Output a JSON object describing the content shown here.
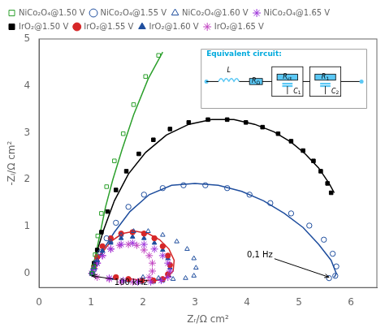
{
  "chart_data": {
    "type": "scatter",
    "xlabel": "Zᵣ/Ω cm²",
    "ylabel": "-Zᵢ/Ω cm²",
    "xlim": [
      0,
      6.5
    ],
    "ylim": [
      -0.3,
      5.0
    ],
    "xticks": [
      0,
      1,
      2,
      3,
      4,
      5,
      6
    ],
    "yticks": [
      0,
      1,
      2,
      3,
      4,
      5
    ],
    "grid": false,
    "legend": "upper left",
    "series": [
      {
        "type": "line",
        "color": "#2ca02c",
        "x": [
          1.0,
          1.05,
          1.1,
          1.18,
          1.28,
          1.42,
          1.6,
          1.82,
          2.1,
          2.38
        ],
        "values": [
          0.0,
          0.18,
          0.45,
          0.88,
          1.42,
          2.0,
          2.65,
          3.38,
          4.15,
          4.72
        ]
      },
      {
        "type": "line",
        "color": "#000000",
        "x": [
          1.0,
          1.1,
          1.25,
          1.45,
          1.72,
          2.05,
          2.45,
          2.88,
          3.32,
          3.75,
          4.15,
          4.52,
          4.85,
          5.12,
          5.38,
          5.58,
          5.68
        ],
        "values": [
          0.0,
          0.42,
          0.95,
          1.55,
          2.12,
          2.58,
          2.95,
          3.18,
          3.28,
          3.28,
          3.18,
          3.02,
          2.8,
          2.55,
          2.25,
          1.92,
          1.72
        ]
      },
      {
        "type": "line",
        "color": "#d62728",
        "x": [
          1.0,
          1.08,
          1.2,
          1.38,
          1.6,
          1.85,
          2.1,
          2.32,
          2.5,
          2.6,
          2.58,
          2.45,
          2.25,
          1.98,
          1.68
        ],
        "values": [
          0.0,
          0.18,
          0.42,
          0.68,
          0.85,
          0.9,
          0.85,
          0.72,
          0.52,
          0.28,
          0.05,
          -0.1,
          -0.15,
          -0.15,
          -0.1
        ]
      },
      {
        "type": "line",
        "color": "#1f4e9e",
        "x": [
          1.0,
          1.08,
          1.22,
          1.45,
          1.75,
          2.12,
          2.55,
          3.0,
          3.45,
          3.9,
          4.32,
          4.72,
          5.08,
          5.38,
          5.62,
          5.72,
          5.68
        ],
        "values": [
          0.0,
          0.18,
          0.48,
          0.88,
          1.32,
          1.68,
          1.88,
          1.92,
          1.88,
          1.75,
          1.55,
          1.28,
          0.98,
          0.62,
          0.28,
          0.0,
          -0.08
        ]
      },
      {
        "type": "scatter",
        "name": "NiCo₂O₄@1.50 V",
        "color": "#2ca02c",
        "marker": "square-open",
        "x": [
          1.02,
          1.05,
          1.08,
          1.13,
          1.2,
          1.3,
          1.45,
          1.62,
          1.82,
          2.05,
          2.3
        ],
        "values": [
          0.0,
          0.15,
          0.4,
          0.8,
          1.28,
          1.85,
          2.4,
          2.98,
          3.6,
          4.2,
          4.65
        ]
      },
      {
        "type": "scatter",
        "name": "NiCo₂O₄@1.55 V",
        "color": "#1f4e9e",
        "marker": "circle-open",
        "x": [
          1.02,
          1.05,
          1.1,
          1.18,
          1.3,
          1.48,
          1.72,
          2.02,
          2.38,
          2.78,
          3.2,
          3.62,
          4.05,
          4.45,
          4.85,
          5.2,
          5.48,
          5.65,
          5.72,
          5.7,
          5.58
        ],
        "values": [
          0.0,
          0.08,
          0.22,
          0.45,
          0.75,
          1.08,
          1.42,
          1.68,
          1.82,
          1.88,
          1.88,
          1.82,
          1.68,
          1.5,
          1.28,
          1.02,
          0.72,
          0.42,
          0.15,
          -0.05,
          -0.1
        ]
      },
      {
        "type": "scatter",
        "name": "NiCo₂O₄@1.60 V",
        "color": "#1f4e9e",
        "marker": "triangle-open",
        "x": [
          1.02,
          1.06,
          1.12,
          1.22,
          1.38,
          1.58,
          1.82,
          2.1,
          2.38,
          2.65,
          2.85,
          2.98,
          3.02,
          2.98,
          2.82,
          2.58,
          2.3,
          2.0
        ],
        "values": [
          0.0,
          0.12,
          0.28,
          0.48,
          0.68,
          0.82,
          0.9,
          0.9,
          0.82,
          0.68,
          0.52,
          0.32,
          0.12,
          -0.05,
          -0.1,
          -0.12,
          -0.1,
          -0.08
        ]
      },
      {
        "type": "scatter",
        "name": "NiCo₂O₄@1.65 V",
        "color": "#9b30d9",
        "marker": "star-open",
        "x": [
          1.02,
          1.06,
          1.12,
          1.22,
          1.38,
          1.58,
          1.8,
          2.02,
          2.22,
          2.38,
          2.48,
          2.52,
          2.48,
          2.35,
          2.15,
          1.9,
          1.62,
          1.35
        ],
        "values": [
          0.0,
          0.1,
          0.22,
          0.38,
          0.52,
          0.62,
          0.65,
          0.62,
          0.52,
          0.38,
          0.22,
          0.05,
          -0.08,
          -0.15,
          -0.18,
          -0.18,
          -0.15,
          -0.1
        ]
      },
      {
        "type": "scatter",
        "name": "IrO₂@1.50 V",
        "color": "#000000",
        "marker": "square",
        "x": [
          1.02,
          1.06,
          1.12,
          1.2,
          1.32,
          1.48,
          1.68,
          1.92,
          2.2,
          2.52,
          2.88,
          3.25,
          3.62,
          3.98,
          4.3,
          4.6,
          4.85,
          5.08,
          5.28,
          5.42,
          5.55,
          5.62
        ],
        "values": [
          0.0,
          0.22,
          0.5,
          0.88,
          1.32,
          1.78,
          2.18,
          2.55,
          2.85,
          3.08,
          3.22,
          3.28,
          3.28,
          3.22,
          3.12,
          2.98,
          2.82,
          2.62,
          2.4,
          2.18,
          1.92,
          1.72
        ]
      },
      {
        "type": "scatter",
        "name": "IrO₂@1.55 V",
        "color": "#d62728",
        "marker": "circle",
        "x": [
          1.02,
          1.06,
          1.12,
          1.22,
          1.38,
          1.58,
          1.8,
          2.02,
          2.22,
          2.38,
          2.48,
          2.52,
          2.48,
          2.38,
          2.2,
          1.98,
          1.72,
          1.48
        ],
        "values": [
          0.0,
          0.15,
          0.35,
          0.58,
          0.75,
          0.85,
          0.88,
          0.85,
          0.75,
          0.58,
          0.38,
          0.18,
          -0.02,
          -0.12,
          -0.15,
          -0.15,
          -0.12,
          -0.08
        ]
      },
      {
        "type": "scatter",
        "name": "IrO₂@1.60 V",
        "color": "#1f4e9e",
        "marker": "triangle",
        "x": [
          1.02,
          1.06,
          1.12,
          1.22,
          1.38,
          1.58,
          1.8,
          2.02,
          2.22,
          2.38,
          2.48,
          2.52,
          2.5,
          2.38,
          2.2,
          1.98,
          1.72,
          1.45
        ],
        "values": [
          0.0,
          0.12,
          0.28,
          0.48,
          0.65,
          0.75,
          0.78,
          0.75,
          0.65,
          0.5,
          0.32,
          0.12,
          -0.05,
          -0.15,
          -0.18,
          -0.18,
          -0.15,
          -0.1
        ]
      },
      {
        "type": "scatter",
        "name": "IrO₂@1.65 V",
        "color": "#c040c0",
        "marker": "star",
        "x": [
          1.02,
          1.06,
          1.12,
          1.22,
          1.38,
          1.55,
          1.72,
          1.88,
          2.02,
          2.12,
          2.18,
          2.18,
          2.12,
          1.98,
          1.8,
          1.58,
          1.35,
          1.12
        ],
        "values": [
          0.0,
          0.1,
          0.22,
          0.38,
          0.52,
          0.6,
          0.62,
          0.6,
          0.5,
          0.38,
          0.22,
          0.05,
          -0.08,
          -0.15,
          -0.18,
          -0.18,
          -0.12,
          -0.08
        ]
      }
    ],
    "annotations": [
      {
        "text": "100 kHz",
        "xy": [
          1.02,
          -0.05
        ],
        "xytext": [
          1.45,
          -0.25
        ]
      },
      {
        "text": "0,1 Hz",
        "xy": [
          5.58,
          -0.08
        ],
        "xytext": [
          4.0,
          0.35
        ]
      }
    ],
    "inset": {
      "title": "Equivalent circuit:",
      "labels": [
        "L",
        "RΩ",
        "Rct",
        "C1",
        "R1",
        "C2"
      ]
    }
  }
}
